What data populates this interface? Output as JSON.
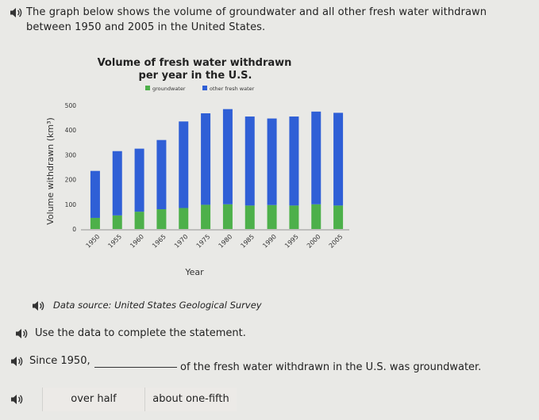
{
  "prompt": {
    "intro": "The graph below shows the volume of groundwater and all other fresh water withdrawn between 1950 and 2005 in the United States.",
    "source": "Data source: United States Geological Survey",
    "instruction": "Use the data to complete the statement.",
    "statement_start": "Since 1950,",
    "statement_end": "of the fresh water withdrawn in the U.S. was groundwater."
  },
  "options": [
    "over half",
    "about one-fifth"
  ],
  "icons": {
    "audio": "speaker-icon"
  },
  "colors": {
    "groundwater": "#4db04a",
    "other_fresh_water": "#2f5fd6"
  },
  "chart_data": {
    "type": "bar",
    "stacked": true,
    "title": "Volume of fresh water withdrawn per year in the U.S.",
    "title_line1": "Volume of fresh water withdrawn",
    "title_line2": "per year in the U.S.",
    "xlabel": "Year",
    "ylabel": "Volume withdrawn (km³)",
    "categories": [
      "1950",
      "1955",
      "1960",
      "1965",
      "1970",
      "1975",
      "1980",
      "1985",
      "1990",
      "1995",
      "2000",
      "2005"
    ],
    "series": [
      {
        "name": "groundwater",
        "values": [
          45,
          55,
          70,
          80,
          85,
          98,
          100,
          95,
          97,
          95,
          100,
          95
        ]
      },
      {
        "name": "other fresh water",
        "values": [
          190,
          260,
          255,
          280,
          350,
          370,
          385,
          360,
          350,
          360,
          375,
          375
        ]
      }
    ],
    "yticks": [
      0,
      100,
      200,
      300,
      400,
      500
    ],
    "ylim": [
      0,
      500
    ],
    "legend": "top"
  }
}
